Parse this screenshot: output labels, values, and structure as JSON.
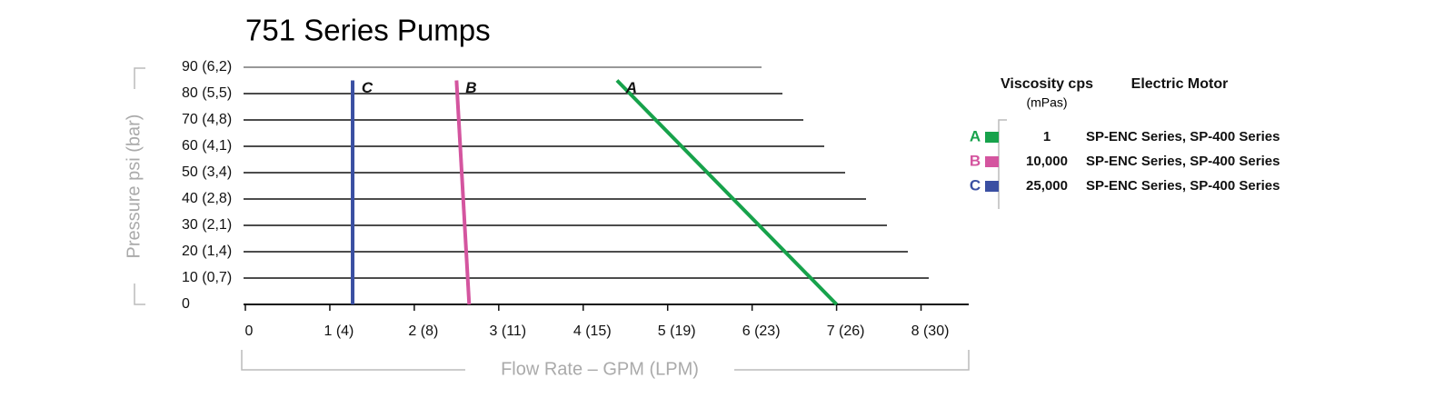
{
  "chart_data": {
    "type": "line",
    "title": "751 Series Pumps",
    "x_label": "Flow Rate – GPM (LPM)",
    "y_label": "Pressure psi (bar)",
    "xlim": [
      0,
      8.5
    ],
    "ylim": [
      0,
      90
    ],
    "xticks": [
      0,
      {
        "value": 1,
        "label": "1 (4)"
      },
      {
        "value": 2,
        "label": "2 (8)"
      },
      {
        "value": 3,
        "label": "3 (11)"
      },
      {
        "value": 4,
        "label": "4 (15)"
      },
      {
        "value": 5,
        "label": "5 (19)"
      },
      {
        "value": 6,
        "label": "6 (23)"
      },
      {
        "value": 7,
        "label": "7 (26)"
      },
      {
        "value": 8,
        "label": "8 (30)"
      }
    ],
    "yticks": [
      0,
      {
        "value": 10,
        "label": "10 (0,7)"
      },
      {
        "value": 20,
        "label": "20 (1,4)"
      },
      {
        "value": 30,
        "label": "30 (2,1)"
      },
      {
        "value": 40,
        "label": "40 (2,8)"
      },
      {
        "value": 50,
        "label": "50 (3,4)"
      },
      {
        "value": 60,
        "label": "60 (4,1)"
      },
      {
        "value": 70,
        "label": "70 (4,8)"
      },
      {
        "value": 80,
        "label": "80 (5,5)"
      },
      {
        "value": 90,
        "label": "90 (6,2)"
      }
    ],
    "grid": true,
    "legend_header": {
      "viscosity": "Viscosity cps",
      "viscosity_unit": "(mPas)",
      "motor": "Electric Motor"
    },
    "series": [
      {
        "name": "A",
        "color": "#17a24b",
        "x": [
          4.4,
          7.0
        ],
        "values": [
          85,
          0
        ],
        "viscosity": "1",
        "motor": "SP-ENC Series, SP-400 Series"
      },
      {
        "name": "B",
        "color": "#d4559f",
        "x": [
          2.5,
          2.65
        ],
        "values": [
          85,
          0
        ],
        "viscosity": "10,000",
        "motor": "SP-ENC Series, SP-400 Series"
      },
      {
        "name": "C",
        "color": "#3a4fa2",
        "x": [
          1.27,
          1.27
        ],
        "values": [
          85,
          0
        ],
        "viscosity": "25,000",
        "motor": "SP-ENC Series, SP-400 Series"
      }
    ]
  }
}
